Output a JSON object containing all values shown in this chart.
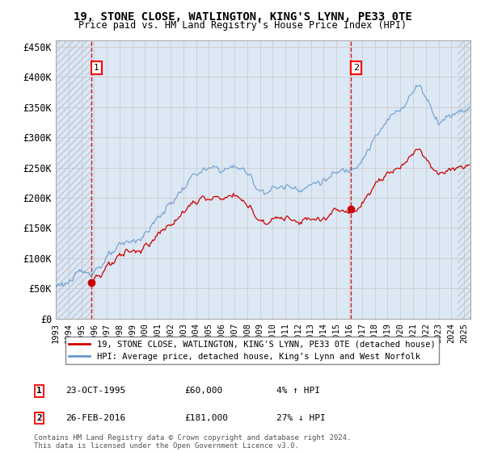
{
  "title": "19, STONE CLOSE, WATLINGTON, KING'S LYNN, PE33 0TE",
  "subtitle": "Price paid vs. HM Land Registry's House Price Index (HPI)",
  "xlim_start": 1993.0,
  "xlim_end": 2025.5,
  "ylim_min": 0,
  "ylim_max": 460000,
  "yticks": [
    0,
    50000,
    100000,
    150000,
    200000,
    250000,
    300000,
    350000,
    400000,
    450000
  ],
  "ytick_labels": [
    "£0",
    "£50K",
    "£100K",
    "£150K",
    "£200K",
    "£250K",
    "£300K",
    "£350K",
    "£400K",
    "£450K"
  ],
  "xticks": [
    1993,
    1994,
    1995,
    1996,
    1997,
    1998,
    1999,
    2000,
    2001,
    2002,
    2003,
    2004,
    2005,
    2006,
    2007,
    2008,
    2009,
    2010,
    2011,
    2012,
    2013,
    2014,
    2015,
    2016,
    2017,
    2018,
    2019,
    2020,
    2021,
    2022,
    2023,
    2024,
    2025
  ],
  "sale1_x": 1995.81,
  "sale1_y": 60000,
  "sale1_label": "1",
  "sale1_date": "23-OCT-1995",
  "sale1_price": "£60,000",
  "sale1_hpi": "4% ↑ HPI",
  "sale2_x": 2016.15,
  "sale2_y": 181000,
  "sale2_label": "2",
  "sale2_date": "26-FEB-2016",
  "sale2_price": "£181,000",
  "sale2_hpi": "27% ↓ HPI",
  "line_color_property": "#cc0000",
  "line_color_hpi": "#6699cc",
  "grid_color": "#cccccc",
  "bg_color": "#dde8f5",
  "legend_line1": "19, STONE CLOSE, WATLINGTON, KING'S LYNN, PE33 0TE (detached house)",
  "legend_line2": "HPI: Average price, detached house, King’s Lynn and West Norfolk",
  "footer": "Contains HM Land Registry data © Crown copyright and database right 2024.\nThis data is licensed under the Open Government Licence v3.0."
}
